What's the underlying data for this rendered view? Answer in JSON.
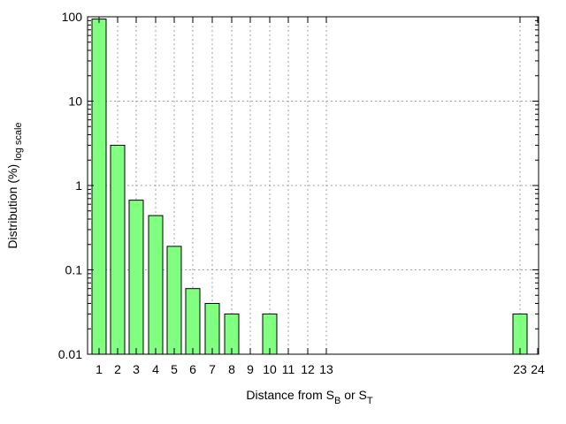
{
  "chart_data": {
    "type": "bar",
    "xlabel_main": "Distance from S",
    "xlabel_sub1": "B",
    "xlabel_mid": " or S",
    "xlabel_sub2": "T",
    "ylabel_main": "Distribution (%)",
    "ylabel_sub": "log scale",
    "y_scale": "log",
    "ylim": [
      0.01,
      100
    ],
    "y_ticks": [
      {
        "value": 0.01,
        "label": "0.01"
      },
      {
        "value": 0.1,
        "label": "0.1"
      },
      {
        "value": 1,
        "label": "1"
      },
      {
        "value": 10,
        "label": "10"
      },
      {
        "value": 100,
        "label": "100"
      }
    ],
    "x_ticks": [
      "1",
      "2",
      "3",
      "4",
      "5",
      "6",
      "7",
      "8",
      "9",
      "10",
      "11",
      "12",
      "13",
      "23",
      "24"
    ],
    "bars": [
      {
        "x": "1",
        "value": 94
      },
      {
        "x": "2",
        "value": 3
      },
      {
        "x": "3",
        "value": 0.67
      },
      {
        "x": "4",
        "value": 0.44
      },
      {
        "x": "5",
        "value": 0.19
      },
      {
        "x": "6",
        "value": 0.06
      },
      {
        "x": "7",
        "value": 0.04
      },
      {
        "x": "8",
        "value": 0.03
      },
      {
        "x": "10",
        "value": 0.03
      },
      {
        "x": "23",
        "value": 0.03
      }
    ],
    "grid": true,
    "bar_color": "#80ff80",
    "bar_edge_color": "#000000"
  }
}
